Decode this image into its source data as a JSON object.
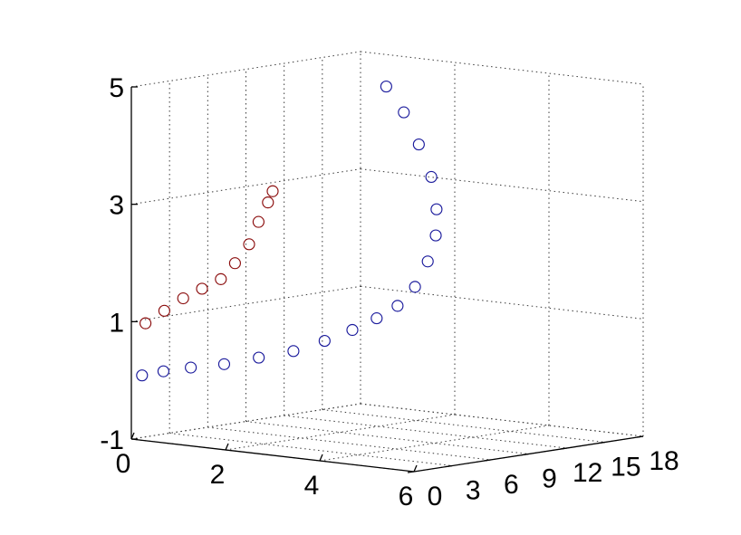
{
  "chart_data": {
    "type": "scatter",
    "title": "",
    "xlabel": "",
    "ylabel": "",
    "zlabel": "",
    "grid": true,
    "x_axis": {
      "range": [
        0,
        6
      ],
      "ticks": [
        0,
        2,
        4,
        6
      ],
      "tick_labels": [
        "0",
        "2",
        "4",
        "6"
      ]
    },
    "y_axis": {
      "range": [
        0,
        18
      ],
      "ticks": [
        0,
        3,
        6,
        9,
        12,
        15,
        18
      ],
      "tick_labels": [
        "0",
        "3",
        "6",
        "9",
        "12",
        "15",
        "18"
      ]
    },
    "z_axis": {
      "range": [
        -1,
        5
      ],
      "ticks": [
        -1,
        1,
        3,
        5
      ],
      "tick_labels": [
        "-1",
        "1",
        "3",
        "5"
      ]
    },
    "marker": "open-circle",
    "series": [
      {
        "color": "#1a1a9c",
        "points": [
          {
            "x": 0.2,
            "y": 0.1,
            "z": 0.1
          },
          {
            "x": 0.6,
            "y": 0.3,
            "z": 0.2
          },
          {
            "x": 1.1,
            "y": 0.6,
            "z": 0.3
          },
          {
            "x": 1.7,
            "y": 1.0,
            "z": 0.4
          },
          {
            "x": 2.3,
            "y": 1.5,
            "z": 0.55
          },
          {
            "x": 2.9,
            "y": 2.0,
            "z": 0.7
          },
          {
            "x": 3.4,
            "y": 2.6,
            "z": 0.9
          },
          {
            "x": 3.8,
            "y": 3.3,
            "z": 1.1
          },
          {
            "x": 4.1,
            "y": 4.1,
            "z": 1.3
          },
          {
            "x": 4.3,
            "y": 5.0,
            "z": 1.5
          },
          {
            "x": 4.4,
            "y": 6.0,
            "z": 1.8
          },
          {
            "x": 4.4,
            "y": 7.0,
            "z": 2.2
          },
          {
            "x": 4.3,
            "y": 8.0,
            "z": 2.6
          },
          {
            "x": 4.1,
            "y": 8.8,
            "z": 3.0
          },
          {
            "x": 3.8,
            "y": 9.5,
            "z": 3.5
          },
          {
            "x": 3.4,
            "y": 10.0,
            "z": 4.0
          },
          {
            "x": 3.0,
            "y": 10.3,
            "z": 4.5
          },
          {
            "x": 2.6,
            "y": 10.4,
            "z": 4.9
          }
        ]
      },
      {
        "color": "#8b0d0d",
        "points": [
          {
            "x": 0.3,
            "y": 0.0,
            "z": 1.0
          },
          {
            "x": 0.7,
            "y": 0.0,
            "z": 1.25
          },
          {
            "x": 1.1,
            "y": 0.0,
            "z": 1.5
          },
          {
            "x": 1.5,
            "y": 0.0,
            "z": 1.7
          },
          {
            "x": 1.9,
            "y": 0.0,
            "z": 1.9
          },
          {
            "x": 2.2,
            "y": 0.0,
            "z": 2.2
          },
          {
            "x": 2.5,
            "y": 0.0,
            "z": 2.55
          },
          {
            "x": 2.7,
            "y": 0.0,
            "z": 2.95
          },
          {
            "x": 2.9,
            "y": 0.0,
            "z": 3.3
          },
          {
            "x": 3.0,
            "y": 0.0,
            "z": 3.5
          }
        ]
      }
    ]
  }
}
